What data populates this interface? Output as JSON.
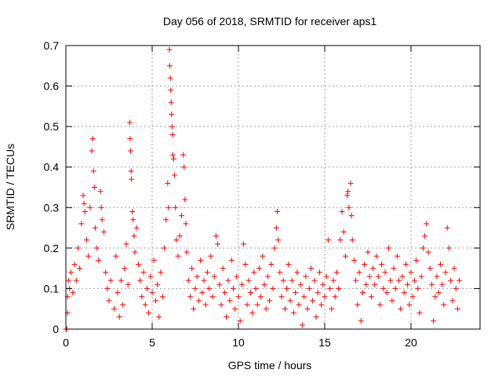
{
  "chart_data": {
    "type": "scatter",
    "title": "Day 056 of 2018, SRMTID for receiver aps1",
    "xlabel": "GPS time / hours",
    "ylabel": "SRMTID / TECUs",
    "xlim": [
      0,
      24
    ],
    "ylim": [
      0,
      0.7
    ],
    "x_ticks": [
      0,
      5,
      10,
      15,
      20
    ],
    "x_tick_labels": [
      "0",
      "5",
      "10",
      "15",
      "20"
    ],
    "y_ticks": [
      0,
      0.1,
      0.2,
      0.3,
      0.4,
      0.5,
      0.6,
      0.7
    ],
    "y_tick_labels": [
      "0",
      "0.1",
      "0.2",
      "0.3",
      "0.4",
      "0.5",
      "0.6",
      "0.7"
    ],
    "grid": true,
    "marker": "+",
    "color": "#ff0000",
    "series": [
      {
        "name": "SRMTID",
        "points": [
          [
            0.0,
            0.0
          ],
          [
            0.05,
            0.0
          ],
          [
            0.1,
            0.04
          ],
          [
            0.1,
            0.08
          ],
          [
            0.15,
            0.12
          ],
          [
            0.2,
            0.1
          ],
          [
            0.3,
            0.14
          ],
          [
            0.4,
            0.09
          ],
          [
            0.5,
            0.16
          ],
          [
            0.6,
            0.12
          ],
          [
            0.7,
            0.2
          ],
          [
            0.8,
            0.15
          ],
          [
            0.9,
            0.26
          ],
          [
            1.0,
            0.33
          ],
          [
            1.05,
            0.31
          ],
          [
            1.1,
            0.29
          ],
          [
            1.2,
            0.22
          ],
          [
            1.3,
            0.18
          ],
          [
            1.4,
            0.3
          ],
          [
            1.5,
            0.44
          ],
          [
            1.55,
            0.47
          ],
          [
            1.6,
            0.39
          ],
          [
            1.65,
            0.35
          ],
          [
            1.7,
            0.25
          ],
          [
            1.8,
            0.2
          ],
          [
            1.9,
            0.17
          ],
          [
            2.0,
            0.34
          ],
          [
            2.05,
            0.3
          ],
          [
            2.1,
            0.27
          ],
          [
            2.2,
            0.24
          ],
          [
            2.3,
            0.14
          ],
          [
            2.4,
            0.1
          ],
          [
            2.5,
            0.07
          ],
          [
            2.6,
            0.12
          ],
          [
            2.8,
            0.05
          ],
          [
            2.9,
            0.18
          ],
          [
            3.0,
            0.09
          ],
          [
            3.1,
            0.03
          ],
          [
            3.2,
            0.12
          ],
          [
            3.3,
            0.06
          ],
          [
            3.4,
            0.15
          ],
          [
            3.5,
            0.21
          ],
          [
            3.6,
            0.11
          ],
          [
            3.7,
            0.51
          ],
          [
            3.72,
            0.47
          ],
          [
            3.75,
            0.44
          ],
          [
            3.78,
            0.39
          ],
          [
            3.8,
            0.37
          ],
          [
            3.85,
            0.29
          ],
          [
            3.9,
            0.27
          ],
          [
            3.95,
            0.23
          ],
          [
            4.0,
            0.19
          ],
          [
            4.1,
            0.25
          ],
          [
            4.2,
            0.16
          ],
          [
            4.3,
            0.12
          ],
          [
            4.4,
            0.08
          ],
          [
            4.5,
            0.14
          ],
          [
            4.6,
            0.06
          ],
          [
            4.7,
            0.1
          ],
          [
            4.8,
            0.04
          ],
          [
            4.9,
            0.13
          ],
          [
            5.0,
            0.09
          ],
          [
            5.1,
            0.17
          ],
          [
            5.2,
            0.07
          ],
          [
            5.3,
            0.11
          ],
          [
            5.4,
            0.03
          ],
          [
            5.5,
            0.14
          ],
          [
            5.6,
            0.08
          ],
          [
            5.7,
            0.2
          ],
          [
            5.8,
            0.27
          ],
          [
            5.9,
            0.36
          ],
          [
            5.95,
            0.3
          ],
          [
            6.0,
            0.69
          ],
          [
            6.02,
            0.65
          ],
          [
            6.05,
            0.62
          ],
          [
            6.08,
            0.59
          ],
          [
            6.1,
            0.56
          ],
          [
            6.12,
            0.53
          ],
          [
            6.15,
            0.5
          ],
          [
            6.18,
            0.48
          ],
          [
            6.2,
            0.43
          ],
          [
            6.25,
            0.42
          ],
          [
            6.3,
            0.38
          ],
          [
            6.35,
            0.3
          ],
          [
            6.4,
            0.22
          ],
          [
            6.5,
            0.18
          ],
          [
            6.6,
            0.23
          ],
          [
            6.7,
            0.28
          ],
          [
            6.8,
            0.43
          ],
          [
            6.85,
            0.4
          ],
          [
            6.9,
            0.32
          ],
          [
            6.95,
            0.26
          ],
          [
            7.0,
            0.19
          ],
          [
            7.1,
            0.12
          ],
          [
            7.2,
            0.08
          ],
          [
            7.3,
            0.15
          ],
          [
            7.4,
            0.05
          ],
          [
            7.5,
            0.1
          ],
          [
            7.6,
            0.13
          ],
          [
            7.7,
            0.07
          ],
          [
            7.8,
            0.17
          ],
          [
            7.9,
            0.09
          ],
          [
            8.0,
            0.12
          ],
          [
            8.1,
            0.06
          ],
          [
            8.2,
            0.14
          ],
          [
            8.3,
            0.1
          ],
          [
            8.4,
            0.18
          ],
          [
            8.5,
            0.08
          ],
          [
            8.6,
            0.13
          ],
          [
            8.7,
            0.23
          ],
          [
            8.8,
            0.21
          ],
          [
            8.9,
            0.11
          ],
          [
            9.0,
            0.06
          ],
          [
            9.1,
            0.15
          ],
          [
            9.2,
            0.09
          ],
          [
            9.3,
            0.03
          ],
          [
            9.4,
            0.12
          ],
          [
            9.5,
            0.07
          ],
          [
            9.6,
            0.17
          ],
          [
            9.7,
            0.1
          ],
          [
            9.8,
            0.05
          ],
          [
            9.9,
            0.13
          ],
          [
            10.0,
            0.08
          ],
          [
            10.1,
            0.02
          ],
          [
            10.2,
            0.11
          ],
          [
            10.3,
            0.21
          ],
          [
            10.4,
            0.16
          ],
          [
            10.5,
            0.06
          ],
          [
            10.6,
            0.12
          ],
          [
            10.7,
            0.09
          ],
          [
            10.8,
            0.04
          ],
          [
            10.9,
            0.14
          ],
          [
            11.0,
            0.1
          ],
          [
            11.1,
            0.06
          ],
          [
            11.2,
            0.15
          ],
          [
            11.3,
            0.08
          ],
          [
            11.4,
            0.18
          ],
          [
            11.5,
            0.11
          ],
          [
            11.6,
            0.05
          ],
          [
            11.7,
            0.13
          ],
          [
            11.8,
            0.07
          ],
          [
            11.9,
            0.16
          ],
          [
            12.0,
            0.1
          ],
          [
            12.1,
            0.2
          ],
          [
            12.2,
            0.25
          ],
          [
            12.25,
            0.29
          ],
          [
            12.3,
            0.22
          ],
          [
            12.4,
            0.14
          ],
          [
            12.5,
            0.08
          ],
          [
            12.6,
            0.12
          ],
          [
            12.7,
            0.05
          ],
          [
            12.8,
            0.1
          ],
          [
            12.9,
            0.16
          ],
          [
            13.0,
            0.07
          ],
          [
            13.1,
            0.12
          ],
          [
            13.2,
            0.04
          ],
          [
            13.3,
            0.09
          ],
          [
            13.4,
            0.14
          ],
          [
            13.5,
            0.06
          ],
          [
            13.6,
            0.11
          ],
          [
            13.7,
            0.01
          ],
          [
            13.8,
            0.08
          ],
          [
            13.9,
            0.13
          ],
          [
            14.0,
            0.05
          ],
          [
            14.1,
            0.1
          ],
          [
            14.2,
            0.15
          ],
          [
            14.3,
            0.07
          ],
          [
            14.4,
            0.12
          ],
          [
            14.5,
            0.03
          ],
          [
            14.6,
            0.09
          ],
          [
            14.7,
            0.14
          ],
          [
            14.8,
            0.06
          ],
          [
            14.9,
            0.11
          ],
          [
            15.0,
            0.08
          ],
          [
            15.1,
            0.13
          ],
          [
            15.2,
            0.22
          ],
          [
            15.3,
            0.1
          ],
          [
            15.4,
            0.05
          ],
          [
            15.5,
            0.12
          ],
          [
            15.6,
            0.08
          ],
          [
            15.7,
            0.14
          ],
          [
            15.8,
            0.1
          ],
          [
            15.9,
            0.22
          ],
          [
            16.0,
            0.29
          ],
          [
            16.1,
            0.24
          ],
          [
            16.2,
            0.18
          ],
          [
            16.3,
            0.33
          ],
          [
            16.35,
            0.34
          ],
          [
            16.4,
            0.3
          ],
          [
            16.5,
            0.36
          ],
          [
            16.55,
            0.28
          ],
          [
            16.6,
            0.22
          ],
          [
            16.7,
            0.17
          ],
          [
            16.8,
            0.12
          ],
          [
            16.9,
            0.06
          ],
          [
            17.0,
            0.14
          ],
          [
            17.1,
            0.02
          ],
          [
            17.2,
            0.09
          ],
          [
            17.3,
            0.16
          ],
          [
            17.4,
            0.11
          ],
          [
            17.5,
            0.19
          ],
          [
            17.6,
            0.13
          ],
          [
            17.7,
            0.08
          ],
          [
            17.8,
            0.15
          ],
          [
            17.9,
            0.11
          ],
          [
            18.0,
            0.18
          ],
          [
            18.1,
            0.13
          ],
          [
            18.2,
            0.06
          ],
          [
            18.3,
            0.16
          ],
          [
            18.4,
            0.1
          ],
          [
            18.5,
            0.14
          ],
          [
            18.6,
            0.09
          ],
          [
            18.7,
            0.2
          ],
          [
            18.8,
            0.12
          ],
          [
            18.9,
            0.07
          ],
          [
            19.0,
            0.15
          ],
          [
            19.1,
            0.1
          ],
          [
            19.2,
            0.18
          ],
          [
            19.3,
            0.12
          ],
          [
            19.4,
            0.05
          ],
          [
            19.5,
            0.13
          ],
          [
            19.6,
            0.09
          ],
          [
            19.7,
            0.16
          ],
          [
            19.8,
            0.11
          ],
          [
            19.9,
            0.06
          ],
          [
            20.0,
            0.14
          ],
          [
            20.1,
            0.08
          ],
          [
            20.2,
            0.12
          ],
          [
            20.3,
            0.17
          ],
          [
            20.4,
            0.1
          ],
          [
            20.5,
            0.04
          ],
          [
            20.6,
            0.13
          ],
          [
            20.7,
            0.2
          ],
          [
            20.8,
            0.23
          ],
          [
            20.9,
            0.26
          ],
          [
            21.0,
            0.19
          ],
          [
            21.1,
            0.15
          ],
          [
            21.2,
            0.11
          ],
          [
            21.3,
            0.02
          ],
          [
            21.4,
            0.08
          ],
          [
            21.5,
            0.13
          ],
          [
            21.6,
            0.09
          ],
          [
            21.7,
            0.16
          ],
          [
            21.8,
            0.11
          ],
          [
            21.9,
            0.06
          ],
          [
            22.0,
            0.14
          ],
          [
            22.1,
            0.25
          ],
          [
            22.2,
            0.2
          ],
          [
            22.3,
            0.12
          ],
          [
            22.4,
            0.07
          ],
          [
            22.5,
            0.15
          ],
          [
            22.6,
            0.1
          ],
          [
            22.7,
            0.05
          ],
          [
            22.8,
            0.12
          ]
        ]
      }
    ]
  }
}
